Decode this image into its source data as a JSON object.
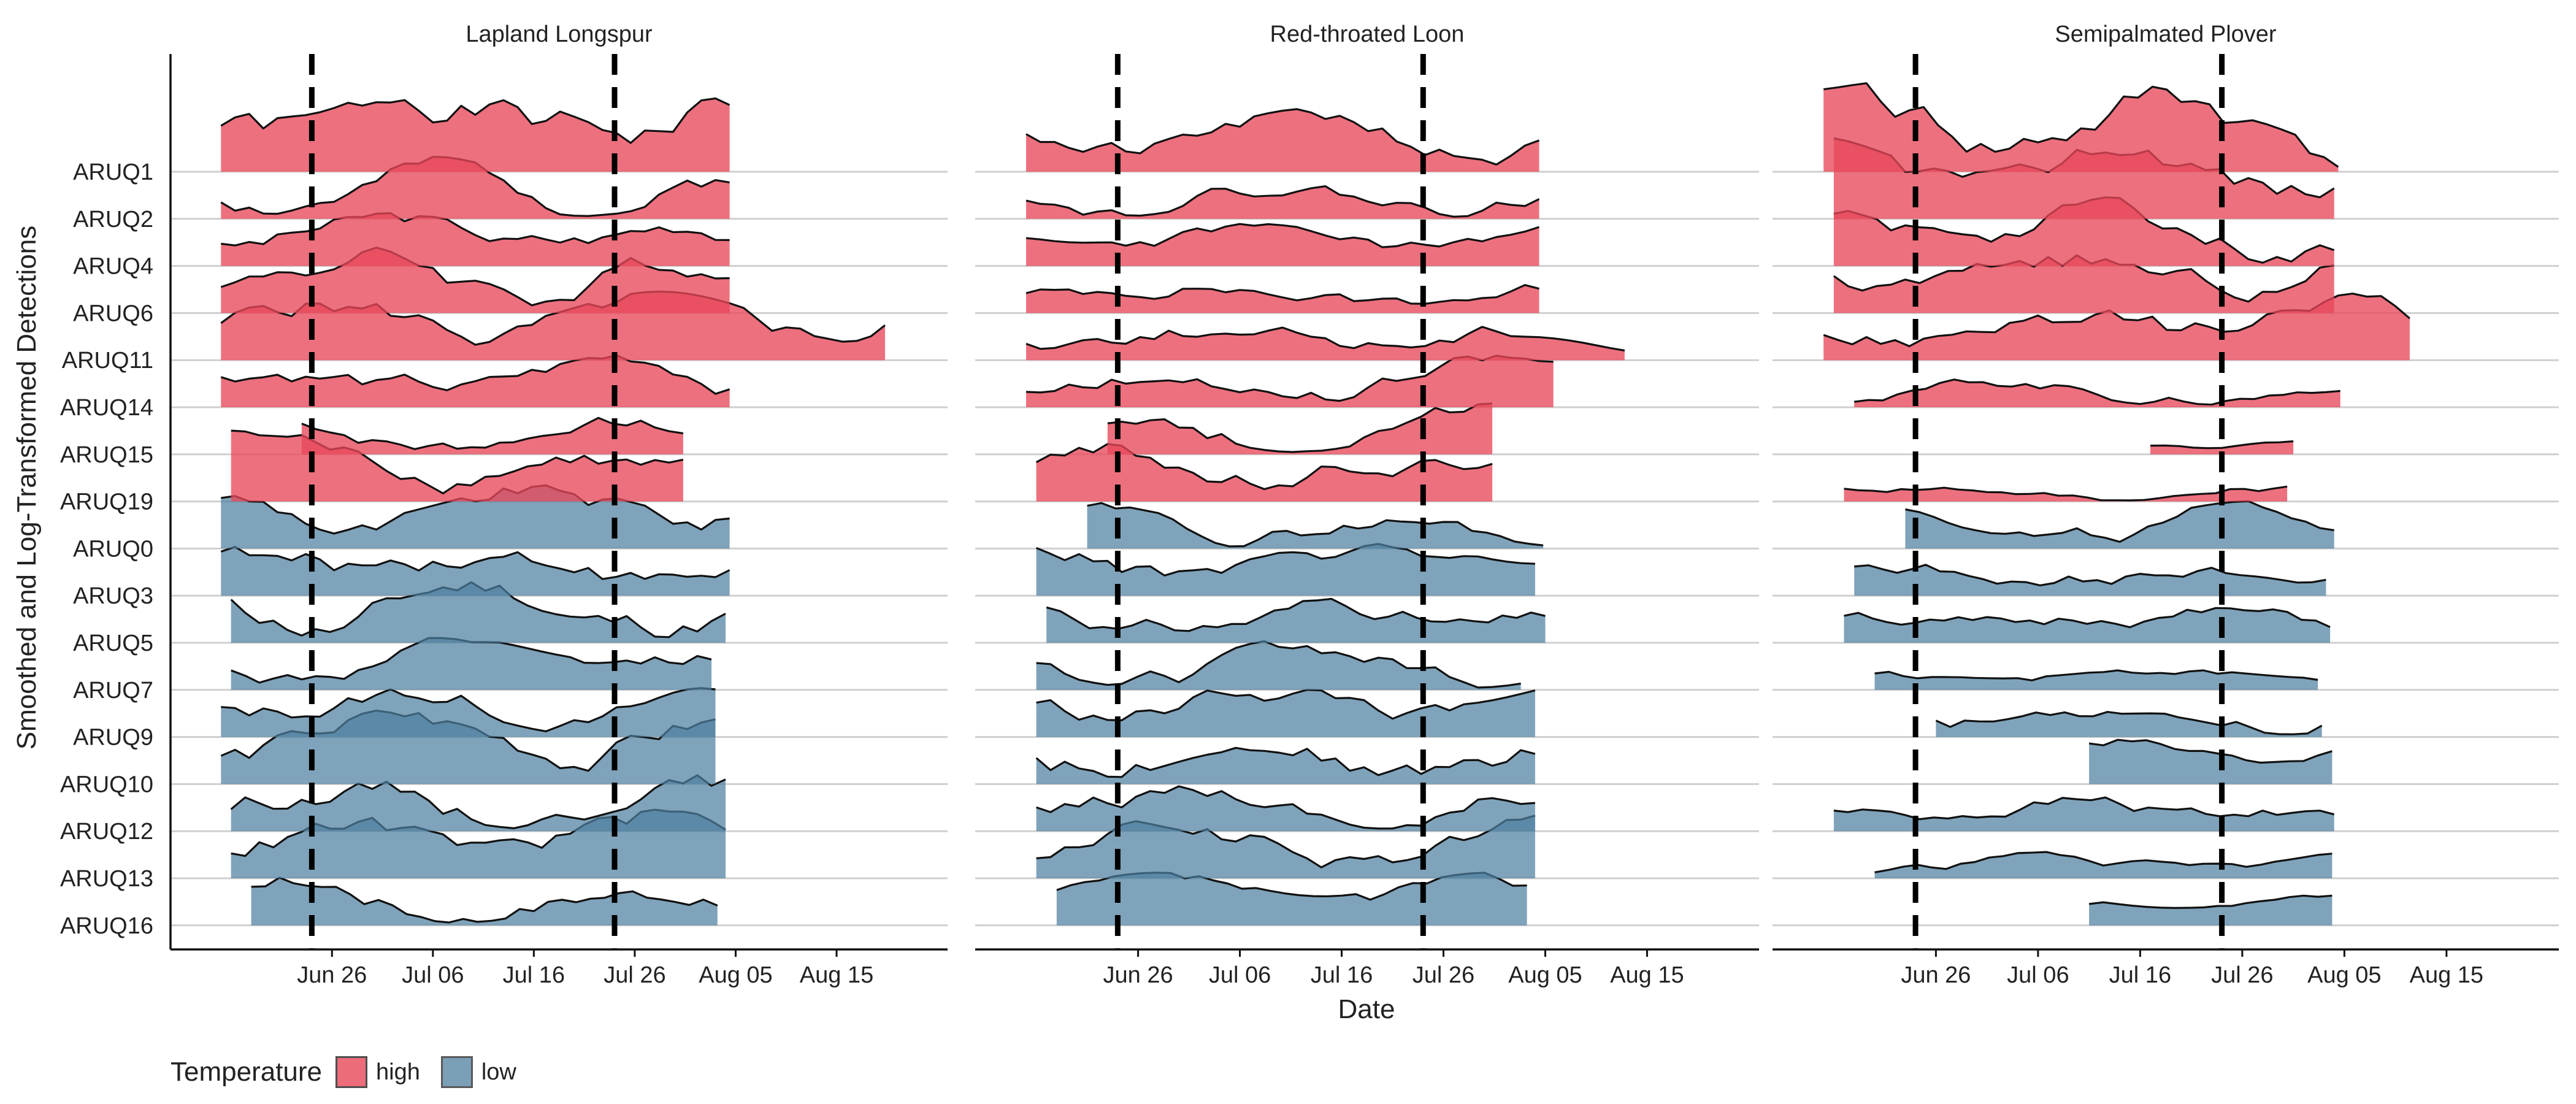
{
  "chart_data": {
    "type": "ridgeline",
    "ylabel": "Smoothed and Log-Transformed Detections",
    "xlabel": "Date",
    "x_ticks": [
      "Jun 26",
      "Jul 06",
      "Jul 16",
      "Jul 26",
      "Aug 05",
      "Aug 15"
    ],
    "x_tick_days": [
      26,
      36,
      46,
      56,
      66,
      76
    ],
    "xlim_days": [
      10,
      87
    ],
    "rows": [
      "ARUQ1",
      "ARUQ2",
      "ARUQ4",
      "ARUQ6",
      "ARUQ11",
      "ARUQ14",
      "ARUQ15",
      "ARUQ19",
      "ARUQ0",
      "ARUQ3",
      "ARUQ5",
      "ARUQ7",
      "ARUQ9",
      "ARUQ10",
      "ARUQ12",
      "ARUQ13",
      "ARUQ16"
    ],
    "legend": {
      "title": "Temperature",
      "entries": [
        {
          "label": "high",
          "color": "#e8485a"
        },
        {
          "label": "low",
          "color": "#4e7fa0"
        }
      ]
    },
    "panels": [
      {
        "title": "Lapland Longspur",
        "vlines_days": [
          24,
          54
        ],
        "series": [
          {
            "site": "ARUQ1",
            "temp": "high",
            "start": 15,
            "end": 66,
            "peak": 1.9,
            "seed": 1
          },
          {
            "site": "ARUQ2",
            "temp": "high",
            "start": 15,
            "end": 66,
            "peak": 1.2,
            "seed": 2
          },
          {
            "site": "ARUQ4",
            "temp": "high",
            "start": 15,
            "end": 66,
            "peak": 1.0,
            "seed": 3
          },
          {
            "site": "ARUQ6",
            "temp": "high",
            "start": 15,
            "end": 66,
            "peak": 1.4,
            "seed": 4
          },
          {
            "site": "ARUQ11",
            "temp": "high",
            "start": 15,
            "end": 81,
            "peak": 1.3,
            "seed": 5
          },
          {
            "site": "ARUQ14",
            "temp": "high",
            "start": 15,
            "end": 66,
            "peak": 1.0,
            "seed": 6
          },
          {
            "site": "ARUQ15",
            "temp": "high",
            "start": 23,
            "end": 62,
            "peak": 0.9,
            "seed": 7
          },
          {
            "site": "ARUQ19",
            "temp": "high",
            "start": 16,
            "end": 62,
            "peak": 1.5,
            "seed": 8
          },
          {
            "site": "ARUQ0",
            "temp": "low",
            "start": 15,
            "end": 66,
            "peak": 1.2,
            "seed": 9
          },
          {
            "site": "ARUQ3",
            "temp": "low",
            "start": 15,
            "end": 66,
            "peak": 1.3,
            "seed": 10
          },
          {
            "site": "ARUQ5",
            "temp": "low",
            "start": 16,
            "end": 65,
            "peak": 1.4,
            "seed": 11
          },
          {
            "site": "ARUQ7",
            "temp": "low",
            "start": 16,
            "end": 64,
            "peak": 1.0,
            "seed": 12
          },
          {
            "site": "ARUQ9",
            "temp": "low",
            "start": 15,
            "end": 65,
            "peak": 1.1,
            "seed": 13
          },
          {
            "site": "ARUQ10",
            "temp": "low",
            "start": 15,
            "end": 65,
            "peak": 1.4,
            "seed": 14
          },
          {
            "site": "ARUQ12",
            "temp": "low",
            "start": 16,
            "end": 66,
            "peak": 1.2,
            "seed": 15
          },
          {
            "site": "ARUQ13",
            "temp": "low",
            "start": 16,
            "end": 66,
            "peak": 1.3,
            "seed": 16
          },
          {
            "site": "ARUQ16",
            "temp": "low",
            "start": 18,
            "end": 65,
            "peak": 1.1,
            "seed": 17
          }
        ]
      },
      {
        "title": "Red-throated Loon",
        "vlines_days": [
          24,
          54
        ],
        "series": [
          {
            "site": "ARUQ1",
            "temp": "high",
            "start": 15,
            "end": 66,
            "peak": 1.2,
            "seed": 21
          },
          {
            "site": "ARUQ2",
            "temp": "high",
            "start": 15,
            "end": 66,
            "peak": 0.9,
            "seed": 22
          },
          {
            "site": "ARUQ4",
            "temp": "high",
            "start": 15,
            "end": 66,
            "peak": 0.8,
            "seed": 23
          },
          {
            "site": "ARUQ6",
            "temp": "high",
            "start": 15,
            "end": 66,
            "peak": 0.8,
            "seed": 24
          },
          {
            "site": "ARUQ11",
            "temp": "high",
            "start": 15,
            "end": 75,
            "peak": 0.9,
            "seed": 25
          },
          {
            "site": "ARUQ14",
            "temp": "high",
            "start": 15,
            "end": 67,
            "peak": 1.0,
            "seed": 26
          },
          {
            "site": "ARUQ15",
            "temp": "high",
            "start": 23,
            "end": 62,
            "peak": 1.0,
            "seed": 27
          },
          {
            "site": "ARUQ19",
            "temp": "high",
            "start": 16,
            "end": 62,
            "peak": 1.1,
            "seed": 28
          },
          {
            "site": "ARUQ0",
            "temp": "low",
            "start": 21,
            "end": 66,
            "peak": 0.9,
            "seed": 29
          },
          {
            "site": "ARUQ3",
            "temp": "low",
            "start": 16,
            "end": 65,
            "peak": 1.1,
            "seed": 30
          },
          {
            "site": "ARUQ5",
            "temp": "low",
            "start": 17,
            "end": 66,
            "peak": 1.0,
            "seed": 31
          },
          {
            "site": "ARUQ7",
            "temp": "low",
            "start": 16,
            "end": 64,
            "peak": 1.0,
            "seed": 32
          },
          {
            "site": "ARUQ9",
            "temp": "low",
            "start": 16,
            "end": 65,
            "peak": 1.1,
            "seed": 33
          },
          {
            "site": "ARUQ10",
            "temp": "low",
            "start": 16,
            "end": 66,
            "peak": 1.3,
            "seed": 34
          },
          {
            "site": "ARUQ12",
            "temp": "low",
            "start": 16,
            "end": 66,
            "peak": 1.1,
            "seed": 35
          },
          {
            "site": "ARUQ13",
            "temp": "low",
            "start": 16,
            "end": 66,
            "peak": 1.2,
            "seed": 36
          },
          {
            "site": "ARUQ16",
            "temp": "low",
            "start": 18,
            "end": 65,
            "peak": 1.0,
            "seed": 37
          }
        ]
      },
      {
        "title": "Semipalmated Plover",
        "vlines_days": [
          24,
          54
        ],
        "series": [
          {
            "site": "ARUQ1",
            "temp": "high",
            "start": 15,
            "end": 66,
            "peak": 2.0,
            "seed": 41
          },
          {
            "site": "ARUQ2",
            "temp": "high",
            "start": 16,
            "end": 66,
            "peak": 1.6,
            "seed": 42
          },
          {
            "site": "ARUQ4",
            "temp": "high",
            "start": 16,
            "end": 66,
            "peak": 1.3,
            "seed": 43
          },
          {
            "site": "ARUQ6",
            "temp": "high",
            "start": 16,
            "end": 65,
            "peak": 1.3,
            "seed": 44
          },
          {
            "site": "ARUQ11",
            "temp": "high",
            "start": 15,
            "end": 73,
            "peak": 1.3,
            "seed": 45
          },
          {
            "site": "ARUQ14",
            "temp": "high",
            "start": 18,
            "end": 66,
            "peak": 0.6,
            "seed": 46
          },
          {
            "site": "ARUQ15",
            "temp": "high",
            "start": 47,
            "end": 62,
            "peak": 0.3,
            "seed": 47
          },
          {
            "site": "ARUQ19",
            "temp": "high",
            "start": 17,
            "end": 61,
            "peak": 0.4,
            "seed": 48
          },
          {
            "site": "ARUQ0",
            "temp": "low",
            "start": 23,
            "end": 66,
            "peak": 0.9,
            "seed": 49
          },
          {
            "site": "ARUQ3",
            "temp": "low",
            "start": 18,
            "end": 65,
            "peak": 0.8,
            "seed": 50
          },
          {
            "site": "ARUQ5",
            "temp": "low",
            "start": 17,
            "end": 65,
            "peak": 0.8,
            "seed": 51
          },
          {
            "site": "ARUQ7",
            "temp": "low",
            "start": 20,
            "end": 64,
            "peak": 0.4,
            "seed": 52
          },
          {
            "site": "ARUQ9",
            "temp": "low",
            "start": 26,
            "end": 65,
            "peak": 0.9,
            "seed": 53
          },
          {
            "site": "ARUQ10",
            "temp": "low",
            "start": 41,
            "end": 65,
            "peak": 0.9,
            "seed": 54
          },
          {
            "site": "ARUQ12",
            "temp": "low",
            "start": 16,
            "end": 66,
            "peak": 0.8,
            "seed": 55
          },
          {
            "site": "ARUQ13",
            "temp": "low",
            "start": 20,
            "end": 66,
            "peak": 0.5,
            "seed": 56
          },
          {
            "site": "ARUQ16",
            "temp": "low",
            "start": 41,
            "end": 65,
            "peak": 0.6,
            "seed": 57
          }
        ]
      }
    ]
  }
}
